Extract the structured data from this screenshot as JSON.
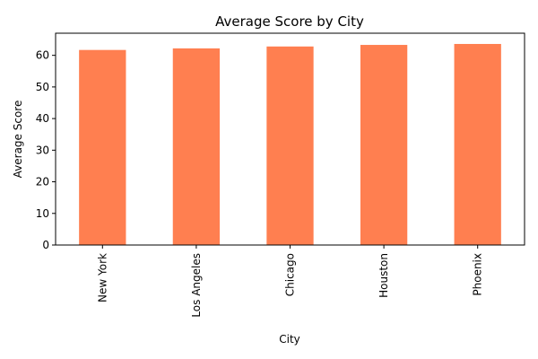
{
  "chart_data": {
    "type": "bar",
    "title": "Average Score by City",
    "xlabel": "City",
    "ylabel": "Average Score",
    "categories": [
      "New York",
      "Los Angeles",
      "Chicago",
      "Houston",
      "Phoenix"
    ],
    "values": [
      61.7,
      62.2,
      62.8,
      63.3,
      63.6
    ],
    "ylim": [
      0,
      67
    ],
    "yticks": [
      0,
      10,
      20,
      30,
      40,
      50,
      60
    ],
    "grid": false,
    "bar_color": "#ff7f50",
    "axis_color": "#000000"
  }
}
